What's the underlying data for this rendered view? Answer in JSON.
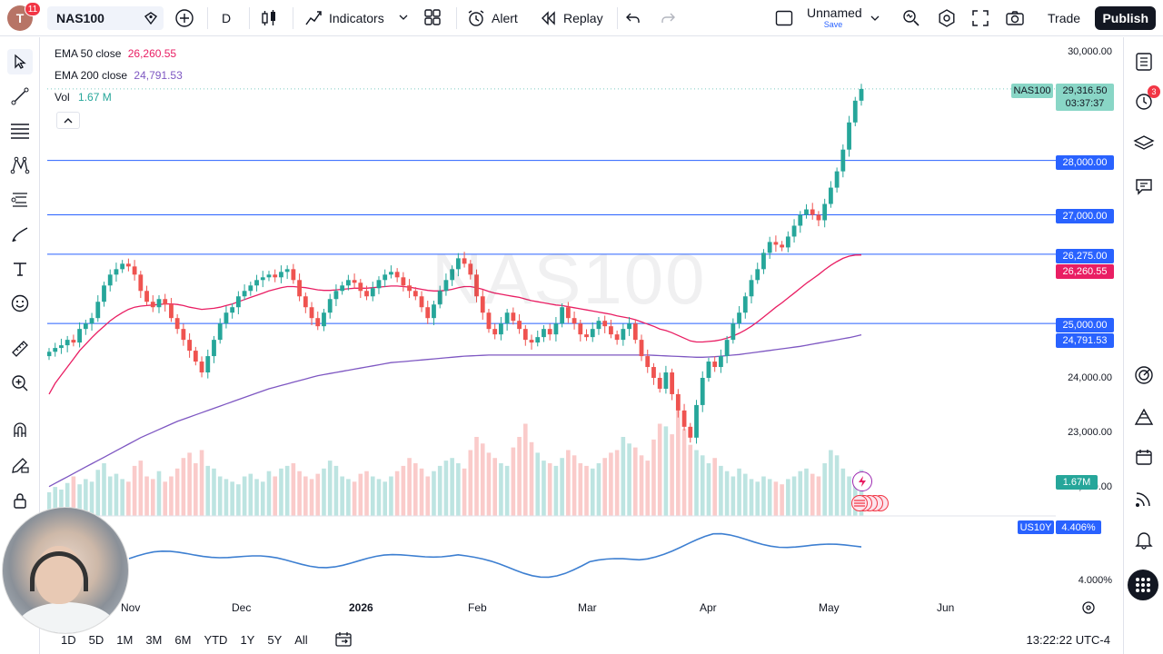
{
  "topbar": {
    "avatar_letter": "T",
    "notif_count": "11",
    "symbol": "NAS100",
    "interval": "D",
    "indicators_label": "Indicators",
    "alert_label": "Alert",
    "replay_label": "Replay",
    "layout_name": "Unnamed",
    "layout_status": "Save",
    "trade_label": "Trade",
    "publish_label": "Publish"
  },
  "legend": {
    "ema50_label": "EMA 50 close",
    "ema50_value": "26,260.55",
    "ema200_label": "EMA 200 close",
    "ema200_value": "24,791.53",
    "vol_label": "Vol",
    "vol_value": "1.67 M"
  },
  "watermark": "NAS100",
  "price_axis": {
    "ticks": [
      "30,000.00",
      "24,000.00",
      "23,000.00",
      "22,000.00"
    ],
    "level_28000": "28,000.00",
    "level_27000": "27,000.00",
    "level_26275": "26,275.00",
    "ema50_tag": "26,260.55",
    "level_25000": "25,000.00",
    "ema200_tag": "24,791.53",
    "last_price": "29,316.50",
    "countdown": "03:37:37",
    "symbol_tag": "NAS100",
    "vol_tag": "1.67M",
    "us10y_tag": "US10Y",
    "us10y_value": "4.406%",
    "yield_tick": "4.000%"
  },
  "time_axis": [
    "Nov",
    "Dec",
    "2026",
    "Feb",
    "Mar",
    "Apr",
    "May",
    "Jun"
  ],
  "bottombar": {
    "ranges": [
      "1D",
      "5D",
      "1M",
      "3M",
      "6M",
      "YTD",
      "1Y",
      "5Y",
      "All"
    ],
    "clock": "13:22:22 UTC-4"
  },
  "right_toolbar": {
    "alerts_badge": "3"
  },
  "colors": {
    "up": "#26a69a",
    "down": "#ef5350",
    "ema50": "#e91e63",
    "ema200": "#7e57c2",
    "level": "#2962ff",
    "yield": "#3d7fd1"
  },
  "chart_data": {
    "type": "candlestick",
    "symbol": "NAS100",
    "ylim": [
      22000,
      30000
    ],
    "last_close": 29316.5,
    "horizontal_levels": [
      28000,
      27000,
      26275,
      25000
    ],
    "ema50_last": 26260.55,
    "ema200_last": 24791.53,
    "volume_last": "1.67M",
    "us10y_last": 4.406,
    "closes": [
      24480,
      24550,
      24600,
      24700,
      24650,
      24900,
      25000,
      25100,
      25400,
      25700,
      25900,
      26000,
      26100,
      26050,
      25900,
      25600,
      25400,
      25300,
      25450,
      25350,
      25100,
      24900,
      24700,
      24500,
      24300,
      24100,
      24400,
      24700,
      25000,
      25200,
      25300,
      25500,
      25600,
      25700,
      25800,
      25850,
      25900,
      25850,
      25950,
      26000,
      25800,
      25500,
      25300,
      25100,
      24950,
      25200,
      25450,
      25600,
      25700,
      25800,
      25750,
      25600,
      25500,
      25650,
      25800,
      25900,
      25950,
      25850,
      25700,
      25600,
      25500,
      25300,
      25100,
      25350,
      25600,
      25800,
      26000,
      26200,
      26100,
      25900,
      25500,
      25200,
      24900,
      24800,
      25000,
      25200,
      25050,
      24900,
      24700,
      24650,
      24750,
      24900,
      24800,
      25000,
      25300,
      25100,
      25000,
      24800,
      24750,
      24900,
      25050,
      24950,
      24800,
      24700,
      24900,
      25000,
      24700,
      24400,
      24200,
      24000,
      23800,
      24100,
      23700,
      23400,
      23100,
      22900,
      23500,
      24000,
      24300,
      24200,
      24400,
      24700,
      25000,
      25200,
      25500,
      25800,
      26000,
      26300,
      26500,
      26450,
      26400,
      26600,
      26800,
      27000,
      27100,
      27000,
      26900,
      27200,
      27500,
      27800,
      28200,
      28700,
      29100,
      29316.5
    ],
    "ema50": [
      23700,
      23900,
      24050,
      24200,
      24350,
      24500,
      24620,
      24740,
      24850,
      24950,
      25050,
      25130,
      25200,
      25260,
      25300,
      25320,
      25330,
      25340,
      25350,
      25360,
      25360,
      25350,
      25330,
      25300,
      25280,
      25260,
      25270,
      25280,
      25300,
      25330,
      25360,
      25400,
      25440,
      25480,
      25520,
      25560,
      25600,
      25630,
      25660,
      25680,
      25680,
      25670,
      25660,
      25640,
      25620,
      25610,
      25610,
      25620,
      25630,
      25640,
      25650,
      25650,
      25650,
      25660,
      25670,
      25680,
      25690,
      25690,
      25680,
      25670,
      25650,
      25630,
      25610,
      25600,
      25600,
      25610,
      25630,
      25660,
      25680,
      25680,
      25660,
      25630,
      25590,
      25560,
      25540,
      25520,
      25500,
      25480,
      25450,
      25420,
      25400,
      25380,
      25360,
      25340,
      25330,
      25310,
      25290,
      25270,
      25250,
      25230,
      25210,
      25190,
      25170,
      25140,
      25120,
      25100,
      25070,
      25030,
      24990,
      24950,
      24900,
      24870,
      24830,
      24780,
      24730,
      24680,
      24660,
      24660,
      24670,
      24680,
      24700,
      24730,
      24770,
      24820,
      24880,
      24950,
      25030,
      25120,
      25210,
      25300,
      25380,
      25470,
      25560,
      25650,
      25740,
      25820,
      25900,
      25990,
      26070,
      26140,
      26200,
      26240,
      26260,
      26260.55
    ],
    "ema200": [
      22000,
      22060,
      22120,
      22180,
      22240,
      22300,
      22360,
      22420,
      22480,
      22540,
      22600,
      22660,
      22720,
      22780,
      22840,
      22900,
      22950,
      23000,
      23050,
      23100,
      23150,
      23200,
      23240,
      23280,
      23320,
      23360,
      23400,
      23440,
      23480,
      23520,
      23560,
      23600,
      23640,
      23680,
      23720,
      23760,
      23800,
      23830,
      23860,
      23890,
      23920,
      23950,
      23980,
      24010,
      24040,
      24060,
      24080,
      24100,
      24120,
      24140,
      24160,
      24180,
      24200,
      24220,
      24240,
      24260,
      24280,
      24290,
      24300,
      24310,
      24320,
      24330,
      24340,
      24350,
      24360,
      24370,
      24380,
      24390,
      24400,
      24405,
      24410,
      24415,
      24420,
      24420,
      24420,
      24420,
      24420,
      24420,
      24420,
      24420,
      24420,
      24420,
      24420,
      24420,
      24420,
      24420,
      24420,
      24420,
      24420,
      24420,
      24420,
      24420,
      24420,
      24420,
      24420,
      24420,
      24420,
      24420,
      24420,
      24415,
      24410,
      24405,
      24400,
      24395,
      24390,
      24385,
      24380,
      24380,
      24385,
      24390,
      24400,
      24410,
      24420,
      24430,
      24445,
      24460,
      24475,
      24490,
      24505,
      24520,
      24535,
      24550,
      24565,
      24580,
      24600,
      24620,
      24640,
      24660,
      24680,
      24700,
      24720,
      24740,
      24765,
      24791.53
    ],
    "volume": [
      18,
      22,
      20,
      25,
      30,
      24,
      28,
      26,
      35,
      40,
      30,
      32,
      28,
      26,
      38,
      42,
      30,
      28,
      34,
      26,
      30,
      36,
      44,
      48,
      40,
      50,
      38,
      36,
      30,
      28,
      26,
      24,
      30,
      32,
      28,
      26,
      34,
      30,
      36,
      38,
      40,
      34,
      30,
      28,
      32,
      36,
      42,
      38,
      30,
      28,
      26,
      32,
      34,
      30,
      28,
      26,
      30,
      34,
      38,
      44,
      40,
      36,
      30,
      34,
      38,
      42,
      44,
      40,
      36,
      50,
      60,
      55,
      48,
      44,
      40,
      38,
      52,
      60,
      70,
      56,
      48,
      42,
      40,
      38,
      44,
      50,
      46,
      40,
      38,
      36,
      40,
      44,
      48,
      50,
      60,
      55,
      52,
      46,
      42,
      58,
      70,
      68,
      62,
      80,
      66,
      54,
      50,
      46,
      40,
      44,
      38,
      34,
      30,
      36,
      32,
      28,
      26,
      30,
      28,
      26,
      24,
      28,
      30,
      34,
      36,
      32,
      30,
      40,
      50,
      46,
      36,
      30,
      28,
      35
    ]
  }
}
